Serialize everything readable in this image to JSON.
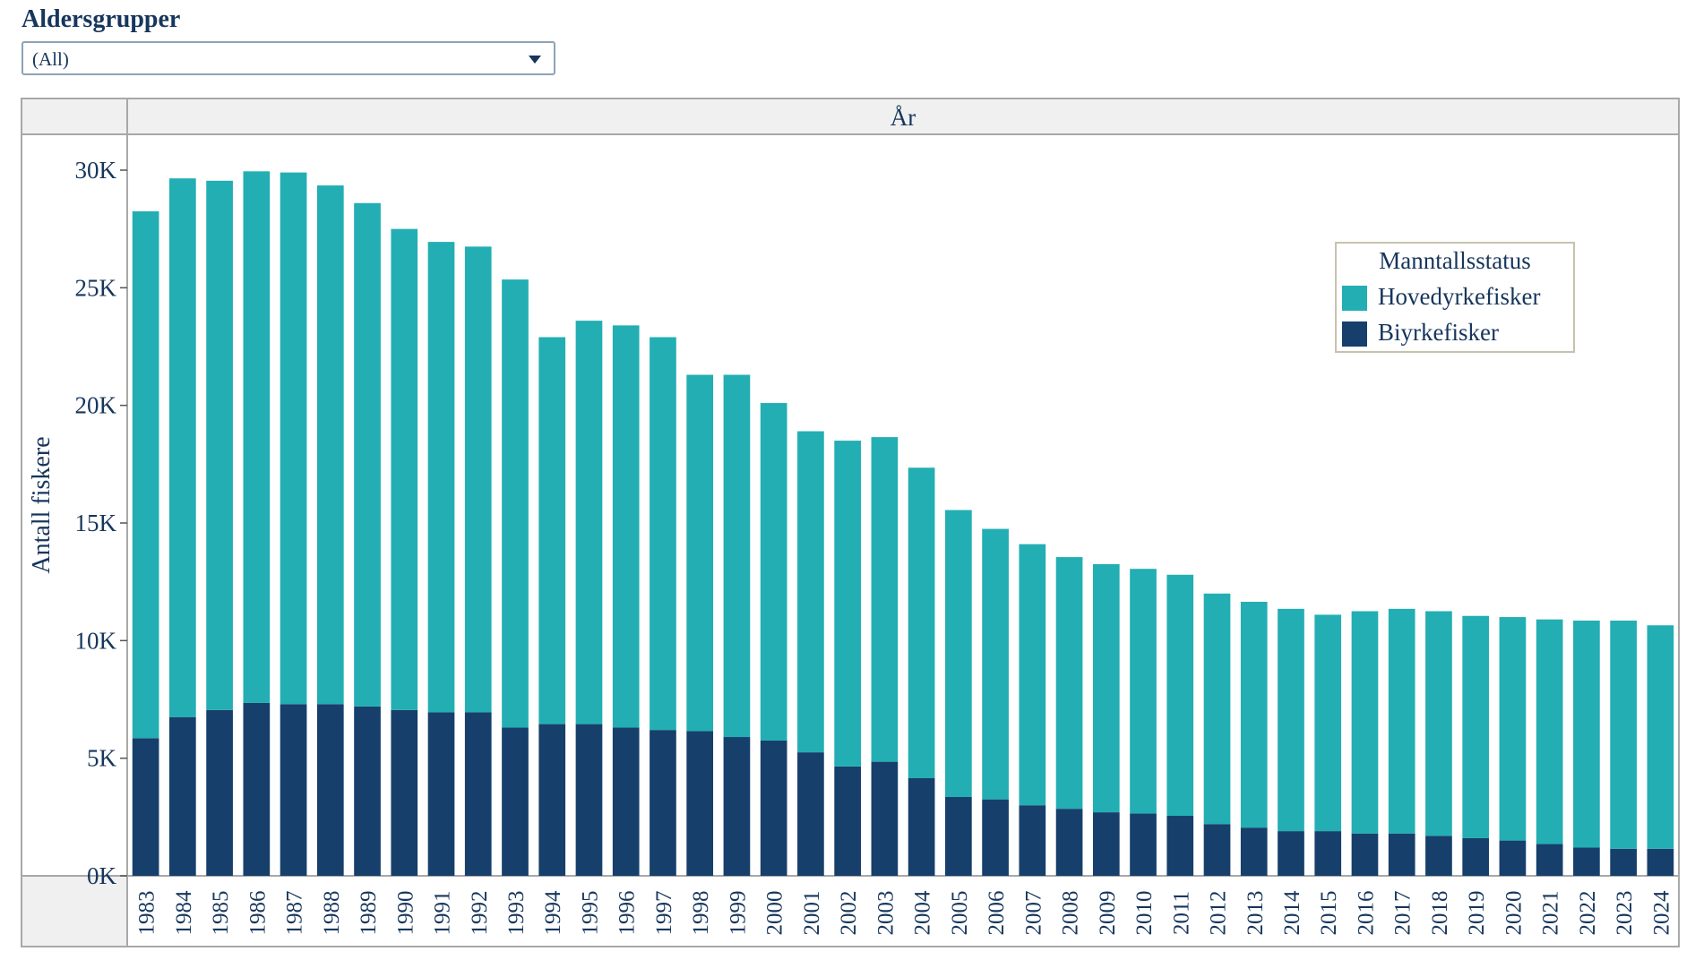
{
  "filter": {
    "title": "Aldersgrupper",
    "selected": "(All)"
  },
  "colors": {
    "hovedyrke": "#23aeb3",
    "biyrke": "#163f6b",
    "text": "#16365c",
    "header_bg": "#f0f0f0",
    "axis": "#a8a8a8"
  },
  "chart_data": {
    "type": "bar",
    "stacked": true,
    "title": "",
    "column_header": "År",
    "ylabel": "Antall fiskere",
    "ylim": [
      0,
      30000
    ],
    "y_ticks": [
      0,
      5000,
      10000,
      15000,
      20000,
      25000,
      30000
    ],
    "y_tick_labels": [
      "0K",
      "5K",
      "10K",
      "15K",
      "20K",
      "25K",
      "30K"
    ],
    "categories": [
      "1983",
      "1984",
      "1985",
      "1986",
      "1987",
      "1988",
      "1989",
      "1990",
      "1991",
      "1992",
      "1993",
      "1994",
      "1995",
      "1996",
      "1997",
      "1998",
      "1999",
      "2000",
      "2001",
      "2002",
      "2003",
      "2004",
      "2005",
      "2006",
      "2007",
      "2008",
      "2009",
      "2010",
      "2011",
      "2012",
      "2013",
      "2014",
      "2015",
      "2016",
      "2017",
      "2018",
      "2019",
      "2020",
      "2021",
      "2022",
      "2023",
      "2024"
    ],
    "legend": {
      "title": "Manntallsstatus",
      "position": "top-right",
      "entries": [
        "Hovedyrkefisker",
        "Biyrkefisker"
      ]
    },
    "series": [
      {
        "name": "Biyrkefisker",
        "values": [
          5850,
          6750,
          7050,
          7350,
          7300,
          7300,
          7200,
          7050,
          6950,
          6950,
          6300,
          6450,
          6450,
          6300,
          6200,
          6150,
          5900,
          5750,
          5250,
          4650,
          4850,
          4150,
          3350,
          3250,
          3000,
          2850,
          2700,
          2650,
          2550,
          2200,
          2050,
          1900,
          1900,
          1800,
          1800,
          1700,
          1600,
          1500,
          1350,
          1200,
          1150,
          1150
        ]
      },
      {
        "name": "Hovedyrkefisker",
        "values": [
          22400,
          22900,
          22500,
          22600,
          22600,
          22050,
          21400,
          20450,
          20000,
          19800,
          19050,
          16450,
          17150,
          17100,
          16700,
          15150,
          15400,
          14350,
          13650,
          13850,
          13800,
          13200,
          12200,
          11500,
          11100,
          10700,
          10550,
          10400,
          10250,
          9800,
          9600,
          9450,
          9200,
          9450,
          9550,
          9550,
          9450,
          9500,
          9550,
          9650,
          9700,
          9500
        ]
      }
    ]
  }
}
